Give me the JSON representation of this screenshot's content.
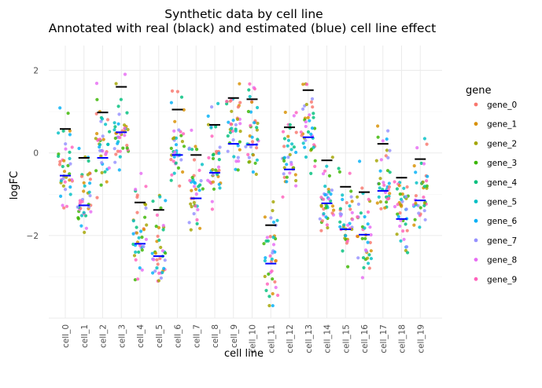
{
  "chart_data": {
    "type": "scatter",
    "title": "Synthetic data by cell line",
    "subtitle": "Annotated with real (black) and estimated (blue) cell line effect",
    "xlabel": "cell line",
    "ylabel": "logFC",
    "ylim": [
      -4,
      2.6
    ],
    "yticks": [
      2,
      0,
      -2
    ],
    "ytick_labels": [
      "2",
      "0",
      "−2"
    ],
    "grid": true,
    "legend_position": "right",
    "legend_title": "gene",
    "categories": [
      "cell_0",
      "cell_1",
      "cell_2",
      "cell_3",
      "cell_4",
      "cell_5",
      "cell_6",
      "cell_7",
      "cell_8",
      "cell_9",
      "cell_10",
      "cell_11",
      "cell_12",
      "cell_13",
      "cell_14",
      "cell_15",
      "cell_16",
      "cell_17",
      "cell_18",
      "cell_19"
    ],
    "series": [
      {
        "name": "gene_0",
        "color": "#f8766d"
      },
      {
        "name": "gene_1",
        "color": "#d89000"
      },
      {
        "name": "gene_2",
        "color": "#a3a500"
      },
      {
        "name": "gene_3",
        "color": "#39b600"
      },
      {
        "name": "gene_4",
        "color": "#00bf7d"
      },
      {
        "name": "gene_5",
        "color": "#00bfc4"
      },
      {
        "name": "gene_6",
        "color": "#00b0f6"
      },
      {
        "name": "gene_7",
        "color": "#9590ff"
      },
      {
        "name": "gene_8",
        "color": "#e76bf3"
      },
      {
        "name": "gene_9",
        "color": "#ff62bc"
      }
    ],
    "real_effect": [
      0.58,
      -0.12,
      0.98,
      1.6,
      -1.2,
      -1.38,
      1.05,
      -0.05,
      0.68,
      1.33,
      1.3,
      -1.75,
      0.62,
      1.52,
      -0.18,
      -0.82,
      -0.95,
      0.22,
      -0.6,
      -0.15
    ],
    "estimated_effect": [
      -0.55,
      -1.27,
      -0.12,
      0.5,
      -2.2,
      -2.5,
      -0.05,
      -1.1,
      -0.48,
      0.22,
      0.2,
      -2.68,
      -0.4,
      0.38,
      -1.22,
      -1.85,
      -1.98,
      -0.92,
      -1.6,
      -1.15
    ],
    "points_per_cell": 40,
    "real_effect_color": "#000000",
    "estimated_effect_color": "#0000ff"
  }
}
